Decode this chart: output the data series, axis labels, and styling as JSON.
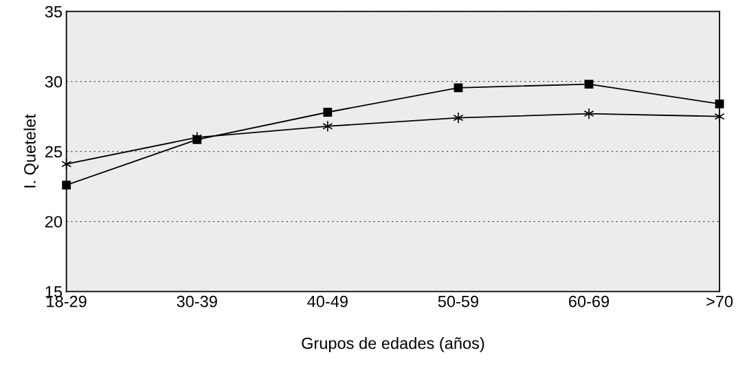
{
  "chart_data": {
    "type": "line",
    "xlabel": "Grupos de edades (años)",
    "ylabel": "I. Quetelet",
    "categories": [
      "18-29",
      "30-39",
      "40-49",
      "50-59",
      "60-69",
      ">70"
    ],
    "series": [
      {
        "color": "#000000",
        "marker": "square",
        "values": [
          22.6,
          25.85,
          27.8,
          29.55,
          29.8,
          28.4
        ]
      },
      {
        "color": "#000000",
        "marker": "cross",
        "values": [
          24.1,
          26.0,
          26.8,
          27.4,
          27.7,
          27.5
        ]
      }
    ],
    "ylim": [
      15,
      35
    ],
    "yticks": [
      15,
      20,
      25,
      30,
      35
    ],
    "grid": "y",
    "line_style": "solid",
    "legend": false
  }
}
